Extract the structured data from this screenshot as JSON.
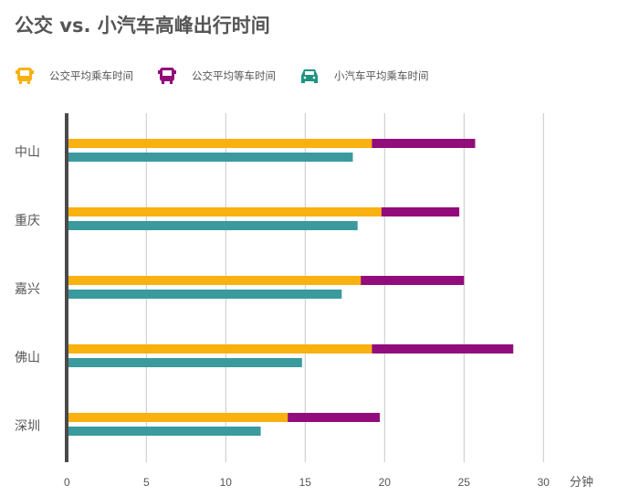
{
  "chart_data": {
    "type": "bar",
    "title": "公交 vs. 小汽车高峰出行时间",
    "xlabel": "分钟",
    "xlim": [
      0,
      30
    ],
    "xticks": [
      0,
      5,
      10,
      15,
      20,
      25,
      30
    ],
    "grid": true,
    "legend_position": "top",
    "categories": [
      "中山",
      "重庆",
      "嘉兴",
      "佛山",
      "深圳"
    ],
    "series": [
      {
        "name": "公交平均乘车时间",
        "color": "#F9B10F",
        "icon": "bus-front-icon",
        "stack": "bus",
        "values": [
          19.2,
          19.8,
          18.5,
          19.2,
          13.9
        ]
      },
      {
        "name": "公交平均等车时间",
        "color": "#930C7B",
        "icon": "bus-front-icon",
        "stack": "bus",
        "values": [
          6.5,
          4.9,
          6.5,
          8.9,
          5.8
        ]
      },
      {
        "name": "小汽车平均乘车时间",
        "color": "#3A9A9E",
        "icon": "car-front-icon",
        "stack": "car",
        "values": [
          18.0,
          18.3,
          17.3,
          14.8,
          12.2
        ]
      }
    ]
  }
}
